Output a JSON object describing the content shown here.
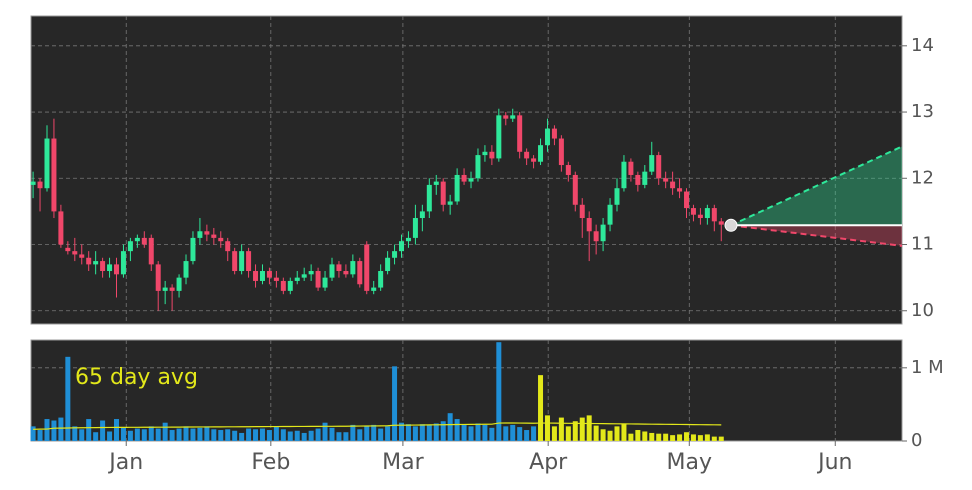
{
  "chart_data": {
    "type": "candlestick",
    "xlim": [
      -0.3,
      125
    ],
    "xticks": [
      {
        "value": 13.4,
        "label": "Jan"
      },
      {
        "value": 34.2,
        "label": "Feb"
      },
      {
        "value": 53.2,
        "label": "Mar"
      },
      {
        "value": 74.1,
        "label": "Apr"
      },
      {
        "value": 94.4,
        "label": "May"
      },
      {
        "value": 115.4,
        "label": "Jun"
      }
    ],
    "ylim": [
      9.8,
      14.45
    ],
    "yticks": [
      10,
      11,
      12,
      13,
      14
    ],
    "grid": true,
    "up_color": "#2ee89a",
    "down_color": "#f0476a",
    "candles": [
      [
        11.9,
        12.1,
        11.7,
        11.95
      ],
      [
        11.95,
        12.0,
        11.5,
        11.85
      ],
      [
        11.85,
        12.8,
        11.8,
        12.6
      ],
      [
        12.6,
        12.9,
        11.4,
        11.5
      ],
      [
        11.5,
        11.6,
        10.95,
        11.0
      ],
      [
        10.95,
        11.05,
        10.85,
        10.9
      ],
      [
        10.9,
        11.1,
        10.75,
        10.85
      ],
      [
        10.85,
        11.0,
        10.7,
        10.8
      ],
      [
        10.8,
        10.9,
        10.6,
        10.7
      ],
      [
        10.7,
        10.9,
        10.55,
        10.75
      ],
      [
        10.75,
        10.8,
        10.5,
        10.6
      ],
      [
        10.6,
        10.8,
        10.5,
        10.7
      ],
      [
        10.7,
        10.8,
        10.2,
        10.55
      ],
      [
        10.55,
        11.0,
        10.5,
        10.9
      ],
      [
        10.9,
        11.1,
        10.75,
        11.05
      ],
      [
        11.05,
        11.15,
        10.95,
        11.1
      ],
      [
        11.1,
        11.2,
        10.95,
        11.0
      ],
      [
        11.1,
        11.15,
        10.6,
        10.7
      ],
      [
        10.7,
        10.75,
        10.0,
        10.3
      ],
      [
        10.3,
        10.45,
        10.1,
        10.35
      ],
      [
        10.35,
        10.4,
        10.0,
        10.3
      ],
      [
        10.3,
        10.55,
        10.2,
        10.5
      ],
      [
        10.5,
        10.85,
        10.4,
        10.75
      ],
      [
        10.75,
        11.2,
        10.7,
        11.1
      ],
      [
        11.1,
        11.4,
        11.0,
        11.2
      ],
      [
        11.2,
        11.3,
        11.05,
        11.15
      ],
      [
        11.15,
        11.25,
        11.0,
        11.1
      ],
      [
        11.1,
        11.2,
        10.95,
        11.05
      ],
      [
        11.05,
        11.1,
        10.75,
        10.9
      ],
      [
        10.9,
        10.95,
        10.55,
        10.6
      ],
      [
        10.6,
        11.0,
        10.55,
        10.9
      ],
      [
        10.9,
        10.95,
        10.5,
        10.6
      ],
      [
        10.6,
        10.7,
        10.35,
        10.45
      ],
      [
        10.45,
        10.7,
        10.4,
        10.6
      ],
      [
        10.6,
        10.65,
        10.4,
        10.5
      ],
      [
        10.5,
        10.6,
        10.35,
        10.45
      ],
      [
        10.45,
        10.5,
        10.25,
        10.3
      ],
      [
        10.3,
        10.5,
        10.25,
        10.45
      ],
      [
        10.45,
        10.6,
        10.4,
        10.5
      ],
      [
        10.5,
        10.65,
        10.45,
        10.55
      ],
      [
        10.55,
        10.7,
        10.45,
        10.6
      ],
      [
        10.6,
        10.65,
        10.3,
        10.35
      ],
      [
        10.35,
        10.6,
        10.3,
        10.5
      ],
      [
        10.5,
        10.8,
        10.45,
        10.7
      ],
      [
        10.7,
        10.75,
        10.5,
        10.6
      ],
      [
        10.6,
        10.7,
        10.5,
        10.55
      ],
      [
        10.55,
        10.85,
        10.5,
        10.75
      ],
      [
        10.75,
        10.8,
        10.35,
        10.4
      ],
      [
        11.0,
        11.05,
        10.25,
        10.3
      ],
      [
        10.3,
        10.45,
        10.25,
        10.35
      ],
      [
        10.35,
        10.7,
        10.3,
        10.6
      ],
      [
        10.6,
        10.9,
        10.55,
        10.8
      ],
      [
        10.8,
        11.0,
        10.7,
        10.9
      ],
      [
        10.9,
        11.15,
        10.8,
        11.05
      ],
      [
        11.05,
        11.2,
        10.95,
        11.1
      ],
      [
        11.1,
        11.6,
        11.0,
        11.4
      ],
      [
        11.4,
        11.6,
        11.2,
        11.5
      ],
      [
        11.5,
        12.0,
        11.4,
        11.9
      ],
      [
        11.9,
        12.05,
        11.75,
        11.95
      ],
      [
        11.95,
        12.0,
        11.5,
        11.6
      ],
      [
        11.6,
        11.75,
        11.45,
        11.65
      ],
      [
        11.65,
        12.15,
        11.6,
        12.05
      ],
      [
        12.05,
        12.15,
        11.9,
        11.95
      ],
      [
        11.95,
        12.1,
        11.85,
        12.0
      ],
      [
        12.0,
        12.45,
        11.95,
        12.35
      ],
      [
        12.35,
        12.5,
        12.25,
        12.4
      ],
      [
        12.4,
        12.5,
        12.2,
        12.3
      ],
      [
        12.3,
        13.05,
        12.25,
        12.95
      ],
      [
        12.95,
        13.0,
        12.8,
        12.9
      ],
      [
        12.9,
        13.05,
        12.85,
        12.95
      ],
      [
        12.95,
        13.0,
        12.3,
        12.4
      ],
      [
        12.4,
        12.45,
        12.2,
        12.3
      ],
      [
        12.3,
        12.35,
        12.15,
        12.25
      ],
      [
        12.25,
        12.6,
        12.2,
        12.5
      ],
      [
        12.5,
        12.9,
        12.4,
        12.75
      ],
      [
        12.75,
        12.8,
        12.5,
        12.6
      ],
      [
        12.6,
        12.65,
        12.1,
        12.2
      ],
      [
        12.2,
        12.25,
        11.95,
        12.05
      ],
      [
        12.05,
        12.1,
        11.5,
        11.6
      ],
      [
        11.6,
        11.7,
        11.1,
        11.4
      ],
      [
        11.4,
        11.5,
        10.75,
        11.2
      ],
      [
        11.2,
        11.3,
        10.85,
        11.05
      ],
      [
        11.05,
        11.4,
        10.9,
        11.3
      ],
      [
        11.3,
        11.7,
        11.2,
        11.6
      ],
      [
        11.6,
        12.0,
        11.5,
        11.85
      ],
      [
        11.85,
        12.35,
        11.8,
        12.25
      ],
      [
        12.25,
        12.3,
        11.95,
        12.05
      ],
      [
        12.05,
        12.1,
        11.8,
        11.9
      ],
      [
        11.9,
        12.2,
        11.85,
        12.1
      ],
      [
        12.1,
        12.55,
        12.05,
        12.35
      ],
      [
        12.35,
        12.4,
        11.9,
        12.0
      ],
      [
        12.0,
        12.1,
        11.85,
        11.95
      ],
      [
        11.95,
        12.1,
        11.75,
        11.85
      ],
      [
        11.85,
        12.0,
        11.7,
        11.8
      ],
      [
        11.8,
        11.85,
        11.4,
        11.55
      ],
      [
        11.55,
        11.6,
        11.35,
        11.45
      ],
      [
        11.45,
        11.55,
        11.3,
        11.4
      ],
      [
        11.4,
        11.6,
        11.3,
        11.55
      ],
      [
        11.55,
        11.6,
        11.2,
        11.35
      ],
      [
        11.35,
        11.4,
        11.05,
        11.3
      ]
    ],
    "forecast": {
      "x": [
        100.4,
        125
      ],
      "mid": [
        11.29,
        11.29
      ],
      "upper": [
        11.29,
        12.48
      ],
      "lower": [
        11.29,
        10.98
      ],
      "up_color": "#2ee89a",
      "down_color": "#f0476a",
      "mid_color": "#ffffff",
      "dot_color": "#d8d8d8"
    },
    "volume": {
      "ylim": [
        0,
        1380000
      ],
      "yticks": [
        0,
        {
          "value": 1000000,
          "label": "1 M"
        }
      ],
      "series": [
        {
          "color": "#1f8fd6",
          "values": [
            200000,
            150000,
            300000,
            280000,
            320000,
            1150000,
            200000,
            160000,
            300000,
            120000,
            280000,
            130000,
            300000,
            190000,
            140000,
            170000,
            160000,
            200000,
            170000,
            250000,
            150000,
            170000,
            200000,
            170000,
            180000,
            200000,
            160000,
            150000,
            160000,
            140000,
            110000,
            170000,
            160000,
            170000,
            150000,
            200000,
            160000,
            130000,
            140000,
            110000,
            140000,
            170000,
            250000,
            180000,
            120000,
            120000,
            220000,
            160000,
            200000,
            220000,
            170000,
            200000,
            1020000,
            250000,
            230000,
            200000,
            230000,
            220000,
            240000,
            270000,
            380000,
            300000,
            230000,
            200000,
            240000,
            220000,
            180000,
            1350000,
            200000,
            220000,
            190000,
            150000,
            200000,
            null,
            null,
            null,
            null,
            null,
            null,
            null,
            null,
            null,
            null,
            null,
            null,
            null,
            null,
            null,
            null,
            null,
            null,
            null,
            null,
            null,
            null,
            null,
            null,
            null,
            null,
            null
          ]
        },
        {
          "color": "#e3e81a",
          "values": [
            null,
            null,
            null,
            null,
            null,
            null,
            null,
            null,
            null,
            null,
            null,
            null,
            null,
            null,
            null,
            null,
            null,
            null,
            null,
            null,
            null,
            null,
            null,
            null,
            null,
            null,
            null,
            null,
            null,
            null,
            null,
            null,
            null,
            null,
            null,
            null,
            null,
            null,
            null,
            null,
            null,
            null,
            null,
            null,
            null,
            null,
            null,
            null,
            null,
            null,
            null,
            null,
            null,
            null,
            null,
            null,
            null,
            null,
            null,
            null,
            null,
            null,
            null,
            null,
            null,
            null,
            null,
            null,
            null,
            null,
            null,
            null,
            null,
            900000,
            350000,
            200000,
            320000,
            200000,
            270000,
            320000,
            350000,
            210000,
            160000,
            140000,
            200000,
            230000,
            100000,
            150000,
            130000,
            110000,
            100000,
            100000,
            80000,
            90000,
            120000,
            90000,
            80000,
            90000,
            60000,
            60000
          ]
        }
      ],
      "avg": {
        "label": "65 day avg",
        "color": "#e3e81a",
        "values": [
          160000,
          162000,
          163000,
          175000,
          176000,
          178000,
          180000,
          181000,
          182000,
          183000,
          184000,
          185000,
          186000,
          186000,
          187000,
          187000,
          188000,
          188000,
          189000,
          189000,
          190000,
          190000,
          191000,
          191000,
          192000,
          192000,
          193000,
          193000,
          194000,
          194000,
          195000,
          195000,
          196000,
          196000,
          197000,
          197000,
          198000,
          198000,
          199000,
          199000,
          200000,
          200000,
          201000,
          201000,
          202000,
          202000,
          203000,
          204000,
          205000,
          206000,
          207000,
          208000,
          215000,
          216000,
          217000,
          218000,
          219000,
          220000,
          221000,
          222000,
          224000,
          225000,
          226000,
          227000,
          228000,
          229000,
          230000,
          245000,
          246000,
          246000,
          245000,
          244000,
          243000,
          245000,
          245000,
          244000,
          243000,
          242000,
          241000,
          240000,
          239000,
          238000,
          237000,
          236000,
          235000,
          234000,
          233000,
          232000,
          231000,
          230000,
          229000,
          228000,
          227000,
          226000,
          225000,
          224000,
          223000,
          222000,
          221000,
          220000
        ]
      }
    }
  }
}
